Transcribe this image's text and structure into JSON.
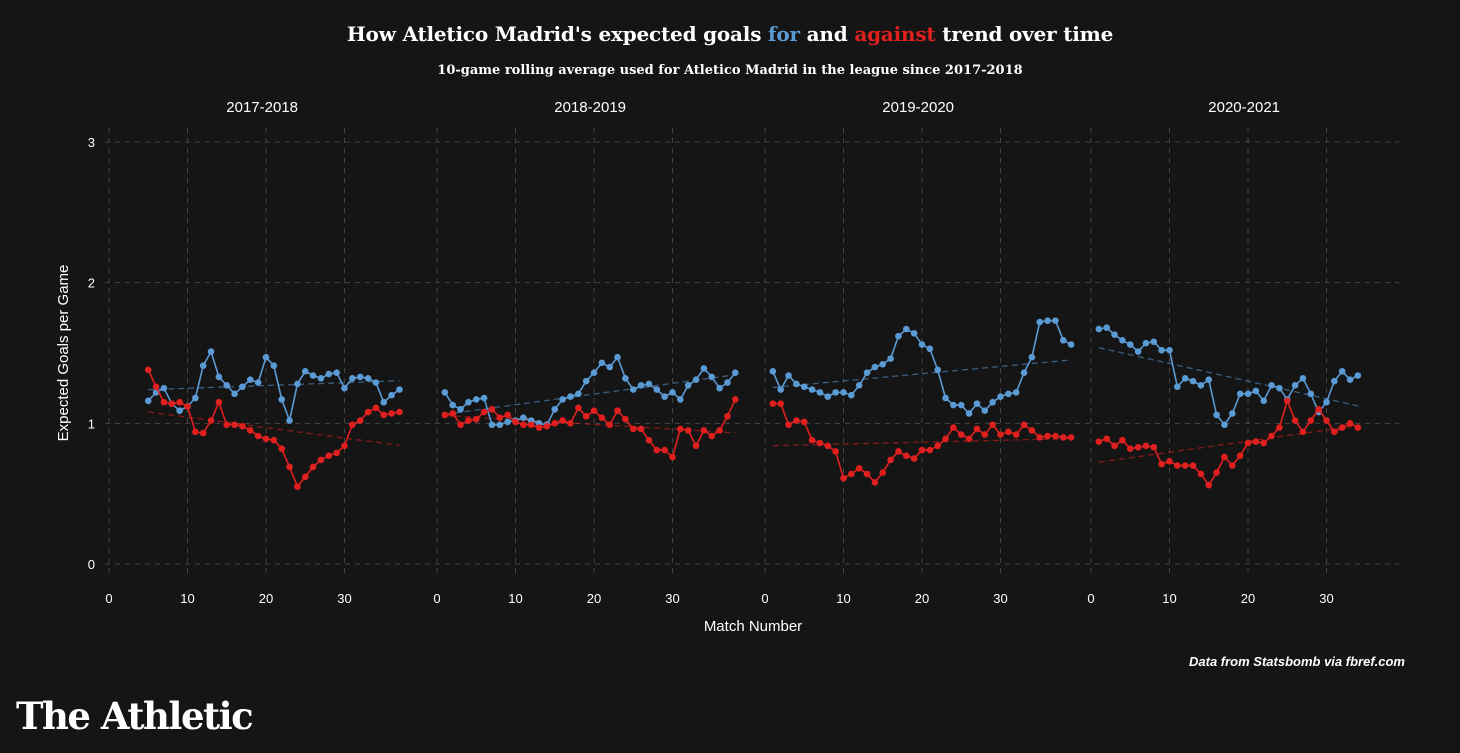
{
  "header": {
    "title_part1": "How Atletico Madrid's expected goals ",
    "title_for": "for",
    "title_part2": " and ",
    "title_against": "against",
    "title_part3": " trend over time",
    "subtitle": "10-game rolling average used for Atletico Madrid in the league since 2017-2018"
  },
  "footer": {
    "source": "Data from Statsbomb via fbref.com",
    "brand": "The Athletic"
  },
  "colors": {
    "background": "#151515",
    "for": "#5b9bd5",
    "against": "#e0201e",
    "grid": "#444444",
    "text": "#ffffff"
  },
  "chart_data": {
    "type": "line",
    "facets": [
      "2017-2018",
      "2018-2019",
      "2019-2020",
      "2020-2021"
    ],
    "xlabel": "Match Number",
    "ylabel": "Expected Goals per Game",
    "xlim": [
      0,
      38
    ],
    "ylim": [
      0,
      3
    ],
    "xticks": [
      0,
      10,
      20,
      30
    ],
    "yticks": [
      0,
      1,
      2,
      3
    ],
    "grid": true,
    "trendlines": "dashed linear fit per series",
    "panels": [
      {
        "facet": "2017-2018",
        "x_start": 5,
        "series": [
          {
            "id": "for",
            "values": [
              1.16,
              1.22,
              1.25,
              1.14,
              1.09,
              1.12,
              1.18,
              1.41,
              1.51,
              1.33,
              1.27,
              1.21,
              1.26,
              1.31,
              1.29,
              1.47,
              1.41,
              1.17,
              1.02,
              1.28,
              1.37,
              1.34,
              1.32,
              1.35,
              1.36,
              1.25,
              1.32,
              1.33,
              1.32,
              1.29,
              1.15,
              1.2,
              1.24
            ]
          },
          {
            "id": "against",
            "values": [
              1.38,
              1.26,
              1.15,
              1.14,
              1.15,
              1.12,
              0.94,
              0.93,
              1.02,
              1.15,
              0.99,
              0.99,
              0.98,
              0.95,
              0.91,
              0.89,
              0.88,
              0.82,
              0.69,
              0.55,
              0.62,
              0.69,
              0.74,
              0.77,
              0.79,
              0.84,
              0.99,
              1.02,
              1.08,
              1.11,
              1.06,
              1.07,
              1.08
            ]
          }
        ]
      },
      {
        "facet": "2018-2019",
        "x_start": 1,
        "series": [
          {
            "id": "for",
            "values": [
              1.22,
              1.13,
              1.1,
              1.15,
              1.17,
              1.18,
              0.99,
              0.99,
              1.01,
              1.02,
              1.04,
              1.02,
              1.0,
              0.99,
              1.1,
              1.17,
              1.19,
              1.21,
              1.3,
              1.36,
              1.43,
              1.4,
              1.47,
              1.32,
              1.24,
              1.27,
              1.28,
              1.24,
              1.19,
              1.22,
              1.17,
              1.27,
              1.31,
              1.39,
              1.33,
              1.25,
              1.29,
              1.36
            ]
          },
          {
            "id": "against",
            "values": [
              1.06,
              1.07,
              0.99,
              1.02,
              1.03,
              1.08,
              1.1,
              1.04,
              1.06,
              1.01,
              0.99,
              0.99,
              0.97,
              0.98,
              1.0,
              1.02,
              1.0,
              1.11,
              1.05,
              1.09,
              1.04,
              0.99,
              1.09,
              1.03,
              0.96,
              0.96,
              0.88,
              0.81,
              0.81,
              0.76,
              0.96,
              0.95,
              0.84,
              0.95,
              0.91,
              0.95,
              1.05,
              1.17
            ]
          }
        ]
      },
      {
        "facet": "2019-2020",
        "x_start": 1,
        "series": [
          {
            "id": "for",
            "values": [
              1.37,
              1.24,
              1.34,
              1.28,
              1.26,
              1.24,
              1.22,
              1.19,
              1.22,
              1.22,
              1.2,
              1.27,
              1.36,
              1.4,
              1.42,
              1.46,
              1.62,
              1.67,
              1.64,
              1.56,
              1.53,
              1.38,
              1.18,
              1.13,
              1.13,
              1.07,
              1.14,
              1.09,
              1.15,
              1.19,
              1.21,
              1.22,
              1.36,
              1.47,
              1.72,
              1.73,
              1.73,
              1.59,
              1.56
            ]
          },
          {
            "id": "against",
            "values": [
              1.14,
              1.14,
              0.99,
              1.02,
              1.01,
              0.88,
              0.86,
              0.84,
              0.8,
              0.61,
              0.64,
              0.68,
              0.64,
              0.58,
              0.65,
              0.74,
              0.8,
              0.77,
              0.75,
              0.81,
              0.81,
              0.84,
              0.89,
              0.97,
              0.92,
              0.89,
              0.96,
              0.92,
              0.99,
              0.92,
              0.94,
              0.92,
              0.99,
              0.95,
              0.9,
              0.91,
              0.91,
              0.9,
              0.9
            ]
          }
        ]
      },
      {
        "facet": "2020-2021",
        "x_start": 1,
        "series": [
          {
            "id": "for",
            "values": [
              1.67,
              1.68,
              1.63,
              1.59,
              1.56,
              1.51,
              1.57,
              1.58,
              1.52,
              1.52,
              1.26,
              1.32,
              1.3,
              1.27,
              1.31,
              1.06,
              0.99,
              1.07,
              1.21,
              1.21,
              1.23,
              1.16,
              1.27,
              1.25,
              1.17,
              1.27,
              1.32,
              1.21,
              1.08,
              1.15,
              1.3,
              1.37,
              1.31,
              1.34
            ]
          },
          {
            "id": "against",
            "values": [
              0.87,
              0.89,
              0.84,
              0.88,
              0.82,
              0.83,
              0.84,
              0.83,
              0.71,
              0.73,
              0.7,
              0.7,
              0.7,
              0.64,
              0.56,
              0.65,
              0.76,
              0.7,
              0.77,
              0.86,
              0.87,
              0.86,
              0.91,
              0.97,
              1.16,
              1.02,
              0.94,
              1.02,
              1.1,
              1.02,
              0.94,
              0.97,
              1.0,
              0.97
            ]
          }
        ]
      }
    ]
  }
}
